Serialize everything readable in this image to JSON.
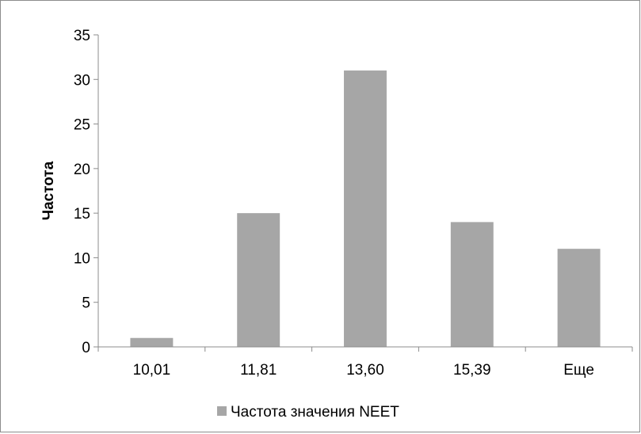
{
  "chart_data": {
    "type": "bar",
    "title": "",
    "xlabel": "",
    "ylabel": "Частота",
    "categories": [
      "10,01",
      "11,81",
      "13,60",
      "15,39",
      "Еще"
    ],
    "series": [
      {
        "name": "Частота значения NEET",
        "values": [
          1,
          15,
          31,
          14,
          11
        ],
        "color": "#a6a6a6"
      }
    ],
    "ylim": [
      0,
      35
    ],
    "yticks": [
      0,
      5,
      10,
      15,
      20,
      25,
      30,
      35
    ],
    "grid": false,
    "legend": "bottom"
  }
}
